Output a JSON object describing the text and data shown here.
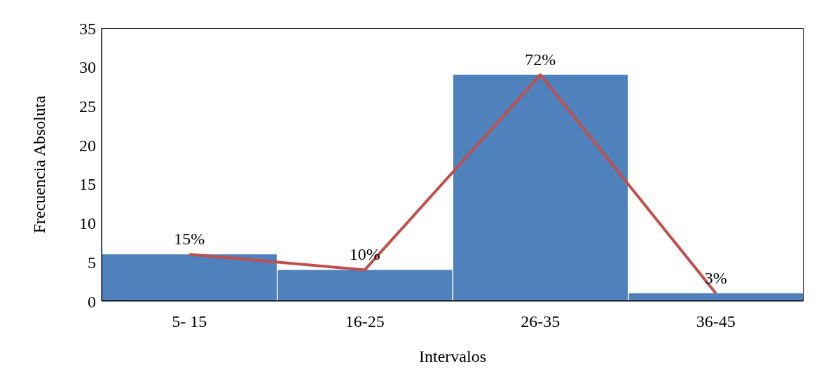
{
  "chart_data": {
    "type": "bar",
    "xlabel": "Intervalos",
    "ylabel": "Frecuencia Absoluta",
    "categories": [
      "5- 15",
      "16-25",
      "26-35",
      "36-45"
    ],
    "series": [
      {
        "color": "#4f81bd",
        "values": [
          6,
          4,
          29,
          1
        ]
      },
      {
        "type": "line",
        "color": "#c0504d",
        "values": [
          6,
          4,
          29,
          1
        ]
      }
    ],
    "annotations": [
      {
        "text": "15%",
        "x": "5- 15",
        "y": 6
      },
      {
        "text": "10%",
        "x": "16-25",
        "y": 4
      },
      {
        "text": "72%",
        "x": "26-35",
        "y": 29
      },
      {
        "text": "3%",
        "x": "36-45",
        "y": 1
      }
    ],
    "ylim": [
      0,
      35
    ],
    "yticks": [
      0,
      5,
      10,
      15,
      20,
      25,
      30,
      35
    ]
  }
}
